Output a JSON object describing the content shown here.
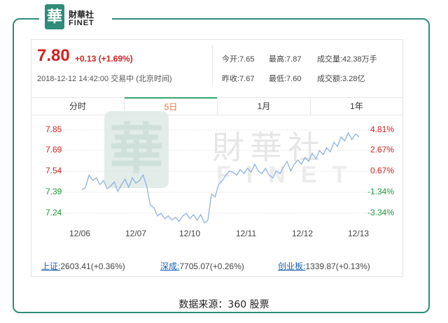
{
  "logo": {
    "badge": "華",
    "cn": "財華社",
    "en": "FINET"
  },
  "quote": {
    "price": "7.80",
    "change": "+0.13 (+1.69%)",
    "timestamp": "2018-12-12 14:42:00 交易中 (北京时间)",
    "open": "今开:7.65",
    "high": "最高:7.87",
    "volume": "成交量:42.38万手",
    "prev_close": "昨收:7.67",
    "low": "最低:7.60",
    "turnover": "成交额:3.28亿"
  },
  "tabs": [
    {
      "label": "分时",
      "active": false
    },
    {
      "label": "5日",
      "active": true
    },
    {
      "label": "1月",
      "active": false
    },
    {
      "label": "1年",
      "active": false
    }
  ],
  "watermark": {
    "badge": "華",
    "cn": "財華社",
    "en": "FINET"
  },
  "colors": {
    "accent": "#2e8c79",
    "up": "#d61f1f",
    "down": "#1f9a3a",
    "line": "#8fb2e0",
    "grid": "#e4e4e4"
  },
  "chart_data": {
    "type": "line",
    "title": "",
    "xlabel": "",
    "ylabel": "",
    "x_ticks": [
      "12/06",
      "12/07",
      "12/10",
      "12/11",
      "12/12",
      "12/13"
    ],
    "y_ticks": [
      "7.85",
      "7.69",
      "7.54",
      "7.39",
      "7.24"
    ],
    "y_ticks_right": [
      "4.81%",
      "2.67%",
      "0.67%",
      "-1.34%",
      "-3.34%"
    ],
    "ylim": [
      7.24,
      7.85
    ],
    "grid": true,
    "series": [
      {
        "values": [
          7.41,
          7.43,
          7.52,
          7.48,
          7.5,
          7.45,
          7.48,
          7.42,
          7.44,
          7.47,
          7.4,
          7.45,
          7.49,
          7.43,
          7.5,
          7.46,
          7.48,
          7.52,
          7.44,
          7.3,
          7.28,
          7.22,
          7.24,
          7.2,
          7.22,
          7.19,
          7.21,
          7.18,
          7.22,
          7.24,
          7.2,
          7.23,
          7.19,
          7.23,
          7.17,
          7.19,
          7.38,
          7.36,
          7.45,
          7.48,
          7.52,
          7.55,
          7.54,
          7.52,
          7.56,
          7.53,
          7.57,
          7.54,
          7.6,
          7.55,
          7.53,
          7.57,
          7.52,
          7.5,
          7.55,
          7.53,
          7.58,
          7.62,
          7.55,
          7.6,
          7.63,
          7.6,
          7.65,
          7.62,
          7.68,
          7.64,
          7.7,
          7.67,
          7.72,
          7.69,
          7.76,
          7.73,
          7.8,
          7.77,
          7.83,
          7.78,
          7.82,
          7.8
        ]
      }
    ]
  },
  "indices": [
    {
      "name": "上证:",
      "value": "2603.41(+0.36%)"
    },
    {
      "name": "深成:",
      "value": "7705.07(+0.26%)"
    },
    {
      "name": "创业板:",
      "value": "1339.87(+0.13%)"
    }
  ],
  "source": "数据来源：360 股票"
}
